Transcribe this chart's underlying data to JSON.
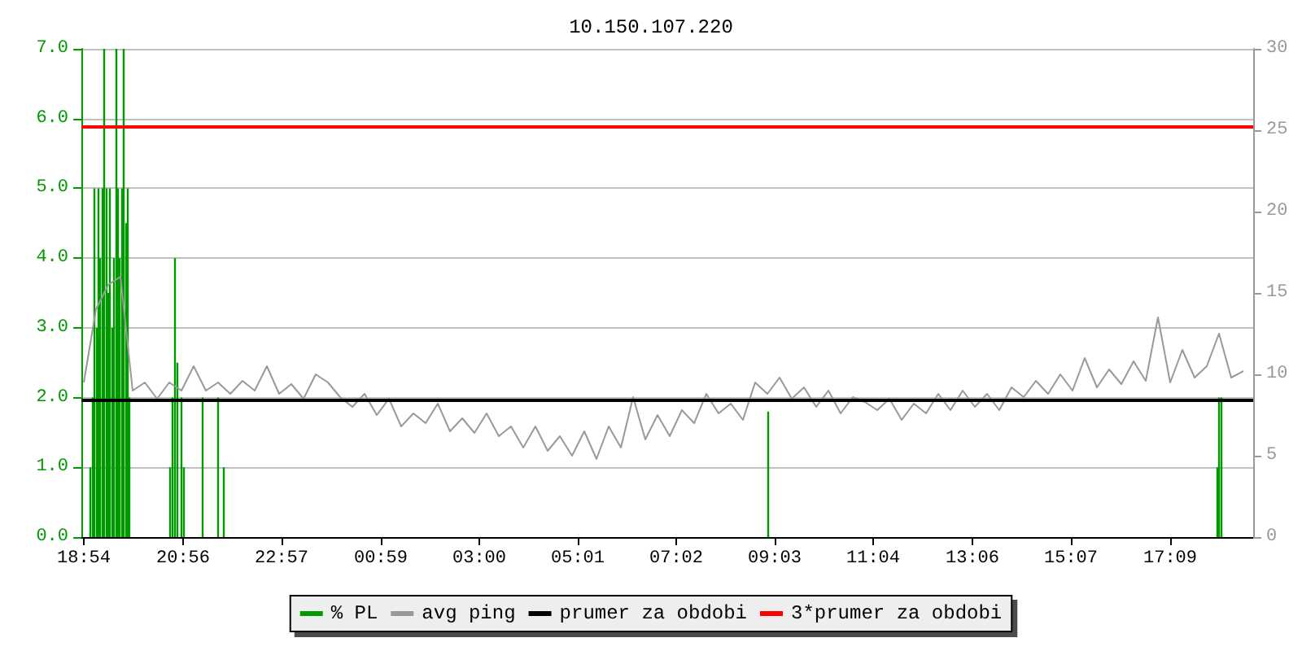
{
  "chart_data": {
    "type": "line",
    "title": "10.150.107.220",
    "xlim": [
      "2000-01-01T18:51",
      "2000-01-02T18:51"
    ],
    "xticks": [
      {
        "value": "2000-01-01T18:54",
        "label": "18:54"
      },
      {
        "value": "2000-01-01T20:56",
        "label": "20:56"
      },
      {
        "value": "2000-01-01T22:57",
        "label": "22:57"
      },
      {
        "value": "2000-01-02T00:59",
        "label": "00:59"
      },
      {
        "value": "2000-01-02T03:00",
        "label": "03:00"
      },
      {
        "value": "2000-01-02T05:01",
        "label": "05:01"
      },
      {
        "value": "2000-01-02T07:02",
        "label": "07:02"
      },
      {
        "value": "2000-01-02T09:03",
        "label": "09:03"
      },
      {
        "value": "2000-01-02T11:04",
        "label": "11:04"
      },
      {
        "value": "2000-01-02T13:06",
        "label": "13:06"
      },
      {
        "value": "2000-01-02T15:07",
        "label": "15:07"
      },
      {
        "value": "2000-01-02T17:09",
        "label": "17:09"
      }
    ],
    "ylim": [
      0,
      7
    ],
    "yticks": [
      {
        "value": 0,
        "label": "0.0"
      },
      {
        "value": 1,
        "label": "1.0"
      },
      {
        "value": 2,
        "label": "2.0"
      },
      {
        "value": 3,
        "label": "3.0"
      },
      {
        "value": 4,
        "label": "4.0"
      },
      {
        "value": 5,
        "label": "5.0"
      },
      {
        "value": 6,
        "label": "6.0"
      },
      {
        "value": 7,
        "label": "7.0"
      }
    ],
    "y2lim": [
      0,
      30
    ],
    "y2ticks": [
      0,
      5,
      10,
      15,
      20,
      25,
      30
    ],
    "grid": "y",
    "legend": "bottom",
    "marker": "none",
    "line_style": "solid",
    "series": [
      {
        "name": "% PL",
        "type": "bar",
        "color": "#009900",
        "x": [
          "2000-01-01T19:02",
          "2000-01-01T19:05",
          "2000-01-01T19:07",
          "2000-01-01T19:10",
          "2000-01-01T19:12",
          "2000-01-01T19:14",
          "2000-01-01T19:17",
          "2000-01-01T19:19",
          "2000-01-01T19:22",
          "2000-01-01T19:24",
          "2000-01-01T19:26",
          "2000-01-01T19:29",
          "2000-01-01T19:31",
          "2000-01-01T19:34",
          "2000-01-01T19:36",
          "2000-01-01T19:38",
          "2000-01-01T19:41",
          "2000-01-01T19:43",
          "2000-01-01T19:46",
          "2000-01-01T19:48",
          "2000-01-01T19:50",
          "2000-01-01T20:40",
          "2000-01-01T20:43",
          "2000-01-01T20:46",
          "2000-01-01T20:49",
          "2000-01-01T20:54",
          "2000-01-01T20:57",
          "2000-01-01T21:20",
          "2000-01-01T21:39",
          "2000-01-01T21:46",
          "2000-01-02T08:55",
          "2000-01-02T18:07",
          "2000-01-02T18:09",
          "2000-01-02T18:12"
        ],
        "values": [
          1,
          2,
          5,
          3,
          5,
          4,
          5,
          7,
          5,
          3.5,
          5,
          3,
          4,
          7,
          5,
          4,
          5,
          7,
          4.5,
          5,
          2,
          1,
          2,
          4,
          2.5,
          2,
          1,
          2,
          2,
          1,
          1.8,
          1,
          2,
          2
        ]
      },
      {
        "name": "avg ping",
        "axis": "y2",
        "color": "#999999",
        "x": [
          "2000-01-01T18:54",
          "2000-01-01T19:09",
          "2000-01-01T19:24",
          "2000-01-01T19:39",
          "2000-01-01T19:54",
          "2000-01-01T20:09",
          "2000-01-01T20:24",
          "2000-01-01T20:39",
          "2000-01-01T20:54",
          "2000-01-01T21:09",
          "2000-01-01T21:24",
          "2000-01-01T21:39",
          "2000-01-01T21:54",
          "2000-01-01T22:09",
          "2000-01-01T22:24",
          "2000-01-01T22:39",
          "2000-01-01T22:54",
          "2000-01-01T23:09",
          "2000-01-01T23:24",
          "2000-01-01T23:39",
          "2000-01-01T23:54",
          "2000-01-02T00:09",
          "2000-01-02T00:24",
          "2000-01-02T00:39",
          "2000-01-02T00:54",
          "2000-01-02T01:09",
          "2000-01-02T01:24",
          "2000-01-02T01:39",
          "2000-01-02T01:54",
          "2000-01-02T02:09",
          "2000-01-02T02:24",
          "2000-01-02T02:39",
          "2000-01-02T02:54",
          "2000-01-02T03:09",
          "2000-01-02T03:24",
          "2000-01-02T03:39",
          "2000-01-02T03:54",
          "2000-01-02T04:09",
          "2000-01-02T04:24",
          "2000-01-02T04:39",
          "2000-01-02T04:54",
          "2000-01-02T05:09",
          "2000-01-02T05:24",
          "2000-01-02T05:39",
          "2000-01-02T05:54",
          "2000-01-02T06:09",
          "2000-01-02T06:24",
          "2000-01-02T06:39",
          "2000-01-02T06:54",
          "2000-01-02T07:09",
          "2000-01-02T07:24",
          "2000-01-02T07:39",
          "2000-01-02T07:54",
          "2000-01-02T08:09",
          "2000-01-02T08:24",
          "2000-01-02T08:39",
          "2000-01-02T08:54",
          "2000-01-02T09:09",
          "2000-01-02T09:24",
          "2000-01-02T09:39",
          "2000-01-02T09:54",
          "2000-01-02T10:09",
          "2000-01-02T10:24",
          "2000-01-02T10:39",
          "2000-01-02T10:54",
          "2000-01-02T11:09",
          "2000-01-02T11:24",
          "2000-01-02T11:39",
          "2000-01-02T11:54",
          "2000-01-02T12:09",
          "2000-01-02T12:24",
          "2000-01-02T12:39",
          "2000-01-02T12:54",
          "2000-01-02T13:09",
          "2000-01-02T13:24",
          "2000-01-02T13:39",
          "2000-01-02T13:54",
          "2000-01-02T14:09",
          "2000-01-02T14:24",
          "2000-01-02T14:39",
          "2000-01-02T14:54",
          "2000-01-02T15:09",
          "2000-01-02T15:24",
          "2000-01-02T15:39",
          "2000-01-02T15:54",
          "2000-01-02T16:09",
          "2000-01-02T16:24",
          "2000-01-02T16:39",
          "2000-01-02T16:54",
          "2000-01-02T17:09",
          "2000-01-02T17:24",
          "2000-01-02T17:39",
          "2000-01-02T17:54",
          "2000-01-02T18:09",
          "2000-01-02T18:24",
          "2000-01-02T18:39"
        ],
        "values": [
          9.5,
          14,
          15.5,
          16,
          9,
          9.5,
          8.5,
          9.5,
          9,
          10.5,
          9,
          9.5,
          8.8,
          9.6,
          9,
          10.5,
          8.8,
          9.4,
          8.5,
          10,
          9.5,
          8.6,
          8,
          8.8,
          7.5,
          8.5,
          6.8,
          7.6,
          7,
          8.2,
          6.5,
          7.3,
          6.4,
          7.6,
          6.2,
          6.8,
          5.5,
          6.8,
          5.3,
          6.2,
          5,
          6.5,
          4.8,
          6.8,
          5.5,
          8.6,
          6,
          7.5,
          6.2,
          7.8,
          7,
          8.8,
          7.6,
          8.2,
          7.2,
          9.5,
          8.8,
          9.8,
          8.5,
          9.2,
          8,
          9,
          7.6,
          8.6,
          8.3,
          7.8,
          8.5,
          7.2,
          8.2,
          7.6,
          8.8,
          7.8,
          9,
          8,
          8.8,
          7.8,
          9.2,
          8.6,
          9.6,
          8.8,
          10,
          9,
          11,
          9.2,
          10.3,
          9.4,
          10.8,
          9.6,
          13.5,
          9.5,
          11.5,
          9.8,
          10.5,
          12.5,
          9.8,
          10.2
        ]
      },
      {
        "name": "prumer za obdobi",
        "axis": "y2",
        "color": "#000000",
        "x": [
          "2000-01-01T18:51",
          "2000-01-02T18:51"
        ],
        "values": [
          8.4,
          8.4
        ]
      },
      {
        "name": "3*prumer za obdobi",
        "axis": "y2",
        "color": "#ff0000",
        "x": [
          "2000-01-01T18:51",
          "2000-01-02T18:51"
        ],
        "values": [
          25.2,
          25.2
        ]
      }
    ]
  }
}
